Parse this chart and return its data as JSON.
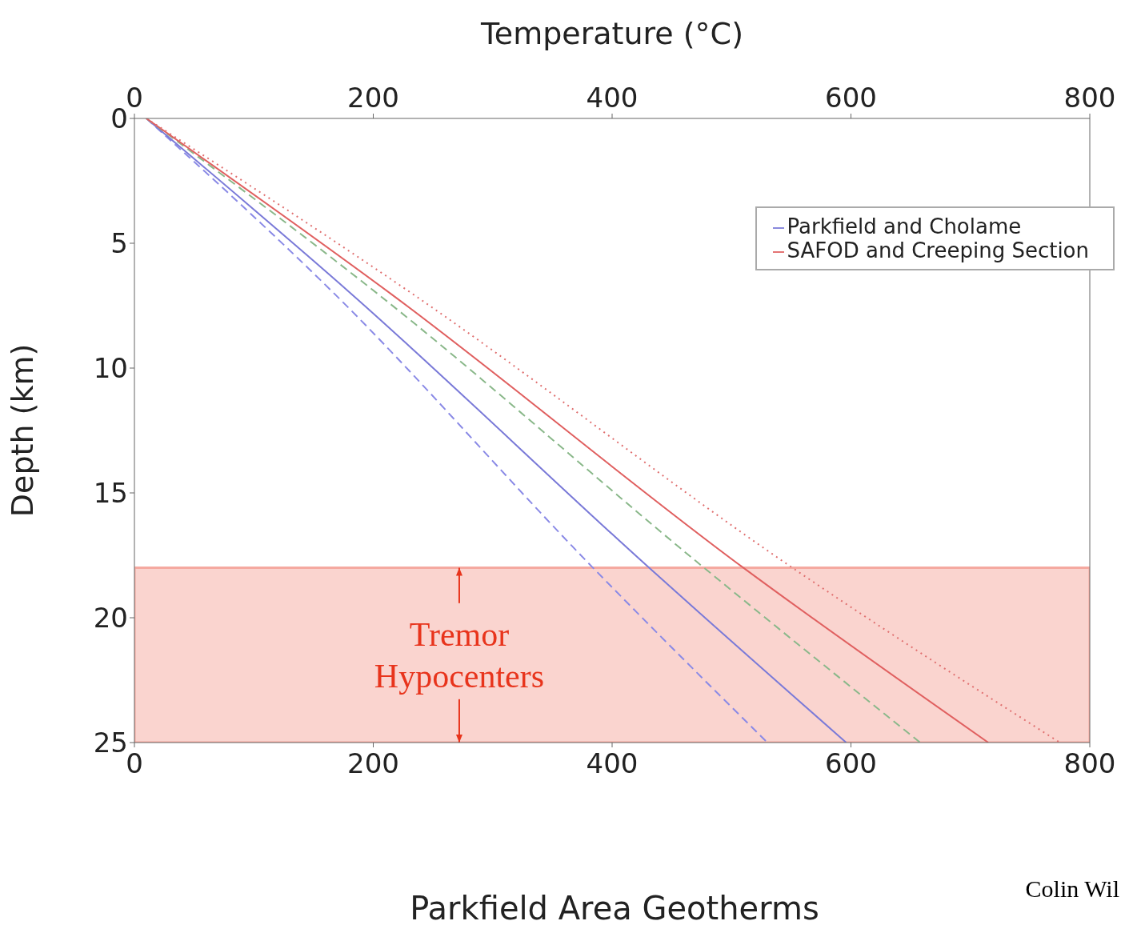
{
  "chart_data": {
    "type": "line",
    "title": "Parkfield Area Geotherms",
    "x2label": "Temperature (°C)",
    "ylabel": "Depth (km)",
    "xlim": [
      0,
      800
    ],
    "xticks": [
      0,
      200,
      400,
      600,
      800
    ],
    "x2lim": [
      0,
      800
    ],
    "x2ticks": [
      0,
      200,
      400,
      600,
      800
    ],
    "ylim": [
      25,
      0
    ],
    "yticks": [
      0,
      5,
      10,
      15,
      20,
      25
    ],
    "legend": "top right",
    "marker": "none",
    "series": [
      {
        "color": "#8a8ae6",
        "line_style": "dashed",
        "x": [
          10,
          167,
          384,
          530
        ],
        "values": [
          0,
          7,
          18,
          25
        ]
      },
      {
        "name": "Parkfield and Cholame",
        "color": "#7a7ad8",
        "line_style": "solid",
        "x": [
          10,
          181,
          431,
          596
        ],
        "values": [
          0,
          7,
          18,
          25
        ]
      },
      {
        "color": "#8ab88a",
        "line_style": "dashed",
        "x": [
          10,
          203,
          477,
          658
        ],
        "values": [
          0,
          7,
          18,
          25
        ]
      },
      {
        "name": "SAFOD and Creeping Section",
        "color": "#e06060",
        "line_style": "solid",
        "x": [
          10,
          214,
          510,
          715
        ],
        "values": [
          0,
          7,
          18,
          25
        ]
      },
      {
        "color": "#e07070",
        "line_style": "dotted",
        "x": [
          10,
          232,
          551,
          775
        ],
        "values": [
          0,
          7,
          18,
          25
        ]
      }
    ],
    "bands": [
      {
        "axis": "y",
        "from": 18,
        "to": 25,
        "label": "Tremor Hypocenters",
        "color": "#f5a9a0"
      }
    ],
    "annotations": [
      "Colin Wil"
    ]
  }
}
